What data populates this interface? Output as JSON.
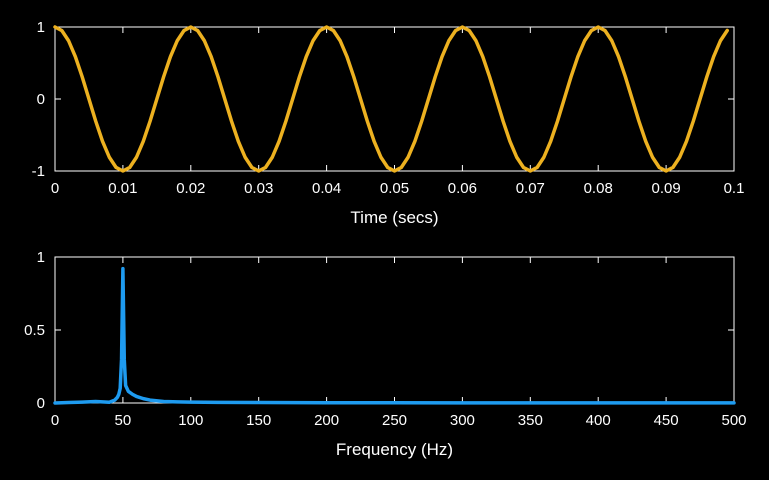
{
  "chart_data": [
    {
      "type": "line",
      "title": "",
      "xlabel": "Time (secs)",
      "ylabel": "",
      "xlim": [
        0,
        0.1
      ],
      "ylim": [
        -1,
        1
      ],
      "xticks": [
        "0",
        "0.01",
        "0.02",
        "0.03",
        "0.04",
        "0.05",
        "0.06",
        "0.07",
        "0.08",
        "0.09",
        "0.1"
      ],
      "yticks": [
        "-1",
        "0",
        "1"
      ],
      "grid": false,
      "series": [
        {
          "color": "#EDB120",
          "function": "cos(2*pi*50*t)",
          "x_start": 0,
          "x_end": 0.099,
          "x_step": 0.001
        }
      ]
    },
    {
      "type": "line",
      "title": "",
      "xlabel": "Frequency (Hz)",
      "ylabel": "",
      "xlim": [
        0,
        500
      ],
      "ylim": [
        0,
        1
      ],
      "xticks": [
        "0",
        "50",
        "100",
        "150",
        "200",
        "250",
        "300",
        "350",
        "400",
        "450",
        "500"
      ],
      "yticks": [
        "0",
        "0.5",
        "1"
      ],
      "grid": false,
      "series": [
        {
          "color": "#1E9BF0",
          "x": [
            0,
            10,
            20,
            30,
            35,
            40,
            44,
            46,
            47,
            48,
            49,
            50,
            51,
            52,
            54,
            57,
            60,
            65,
            70,
            80,
            90,
            100,
            120,
            150,
            200,
            250,
            300,
            350,
            400,
            450,
            500
          ],
          "y": [
            0.0,
            0.003,
            0.006,
            0.01,
            0.008,
            0.005,
            0.02,
            0.04,
            0.06,
            0.1,
            0.3,
            0.92,
            0.3,
            0.12,
            0.08,
            0.06,
            0.045,
            0.03,
            0.02,
            0.01,
            0.008,
            0.006,
            0.004,
            0.003,
            0.002,
            0.002,
            0.001,
            0.001,
            0.001,
            0.001,
            0.001
          ]
        }
      ]
    }
  ]
}
